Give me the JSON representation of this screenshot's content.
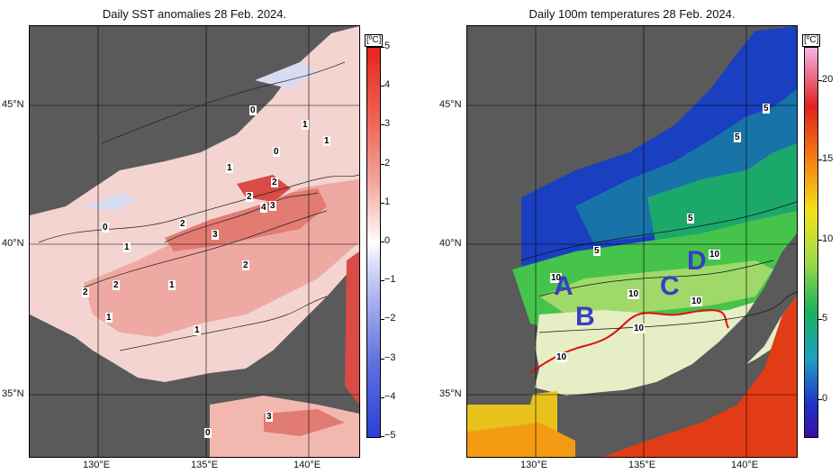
{
  "left_panel": {
    "title": "Daily SST anomalies 28 Feb. 2024.",
    "unit": "[ºC]",
    "colorbar_ticks": [
      "5",
      "4",
      "3",
      "2",
      "1",
      "0",
      "−1",
      "−2",
      "−3",
      "−4",
      "−5"
    ],
    "contour_labels": [
      "0",
      "1",
      "1",
      "0",
      "1",
      "2",
      "2",
      "4",
      "3",
      "0",
      "2",
      "3",
      "1",
      "2",
      "2",
      "1",
      "1",
      "2",
      "1",
      "3",
      "0"
    ]
  },
  "right_panel": {
    "title": "Daily 100m temperatures 28 Feb. 2024.",
    "unit": "[ºC]",
    "colorbar_ticks": [
      "20",
      "15",
      "10",
      "5",
      "0"
    ],
    "contour_labels": [
      "5",
      "5",
      "5",
      "5",
      "10",
      "10",
      "10",
      "10",
      "10",
      "10"
    ],
    "regions": [
      "A",
      "B",
      "C",
      "D"
    ]
  },
  "axes": {
    "lat_labels": [
      "45°N",
      "40°N",
      "35°N"
    ],
    "lon_labels": [
      "130°E",
      "135°E",
      "140°E"
    ]
  },
  "colors": {
    "land": "#555555",
    "anom_pos_max": "#e8231c",
    "anom_neg_max": "#2a3fd6",
    "region_label": "#3a3ec4",
    "kuroshio_line": "#e01010"
  }
}
